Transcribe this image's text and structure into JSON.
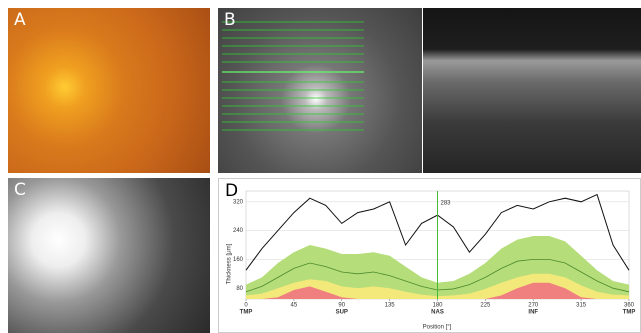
{
  "panels": [
    "A",
    "B",
    "C",
    "D"
  ],
  "chart_data": {
    "type": "area",
    "y_label": "Thickness [μm]",
    "x_label": "Position [°]",
    "x": [
      0,
      15,
      30,
      45,
      60,
      75,
      90,
      105,
      120,
      135,
      150,
      165,
      180,
      195,
      210,
      225,
      240,
      255,
      270,
      285,
      300,
      315,
      330,
      345,
      360
    ],
    "xlim": [
      0,
      360
    ],
    "xticks": [
      0,
      45,
      90,
      135,
      180,
      225,
      270,
      315,
      360
    ],
    "sectors": [
      {
        "value": 0,
        "label": "TMP"
      },
      {
        "value": 90,
        "label": "SUP"
      },
      {
        "value": 180,
        "label": "NAS"
      },
      {
        "value": 270,
        "label": "INF"
      },
      {
        "value": 360,
        "label": "TMP"
      }
    ],
    "ylim": [
      50,
      350
    ],
    "yticks": [
      80,
      160,
      240,
      320
    ],
    "grid": true,
    "bands": [
      {
        "color": "#b5dd7a",
        "values": [
          90,
          110,
          150,
          180,
          200,
          190,
          175,
          175,
          180,
          170,
          140,
          110,
          95,
          100,
          120,
          150,
          190,
          215,
          225,
          225,
          210,
          170,
          130,
          100,
          90
        ]
      },
      {
        "color": "#f3e97a",
        "values": [
          60,
          65,
          80,
          95,
          105,
          100,
          85,
          80,
          85,
          80,
          70,
          62,
          58,
          60,
          65,
          78,
          95,
          110,
          120,
          120,
          110,
          88,
          70,
          62,
          60
        ]
      },
      {
        "color": "#f08080",
        "values": [
          50,
          50,
          55,
          75,
          85,
          70,
          55,
          50,
          50,
          50,
          50,
          50,
          50,
          50,
          50,
          50,
          60,
          80,
          95,
          95,
          80,
          55,
          50,
          50,
          50
        ]
      }
    ],
    "series": [
      {
        "color": "#4c8a2c",
        "values": [
          70,
          85,
          110,
          135,
          150,
          140,
          125,
          120,
          125,
          115,
          100,
          85,
          75,
          78,
          90,
          110,
          135,
          155,
          160,
          160,
          150,
          125,
          100,
          80,
          70
        ]
      },
      {
        "color": "#111111",
        "values": [
          130,
          190,
          240,
          290,
          330,
          310,
          260,
          290,
          300,
          320,
          200,
          260,
          283,
          250,
          180,
          230,
          290,
          310,
          300,
          320,
          330,
          320,
          340,
          200,
          130
        ]
      }
    ],
    "marker": {
      "x": 180,
      "label": "283",
      "color": "#44bb33"
    }
  }
}
